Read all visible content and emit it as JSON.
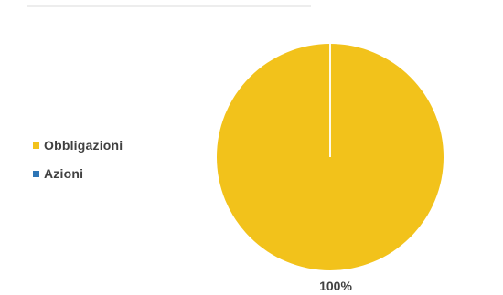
{
  "chart_data": {
    "type": "pie",
    "title": "",
    "categories": [
      "Obbligazioni",
      "Azioni"
    ],
    "values": [
      100,
      0
    ],
    "data_labels": [
      "100%"
    ],
    "colors": [
      "#f2c21b",
      "#2e75b6"
    ],
    "legend_placement": "left"
  }
}
